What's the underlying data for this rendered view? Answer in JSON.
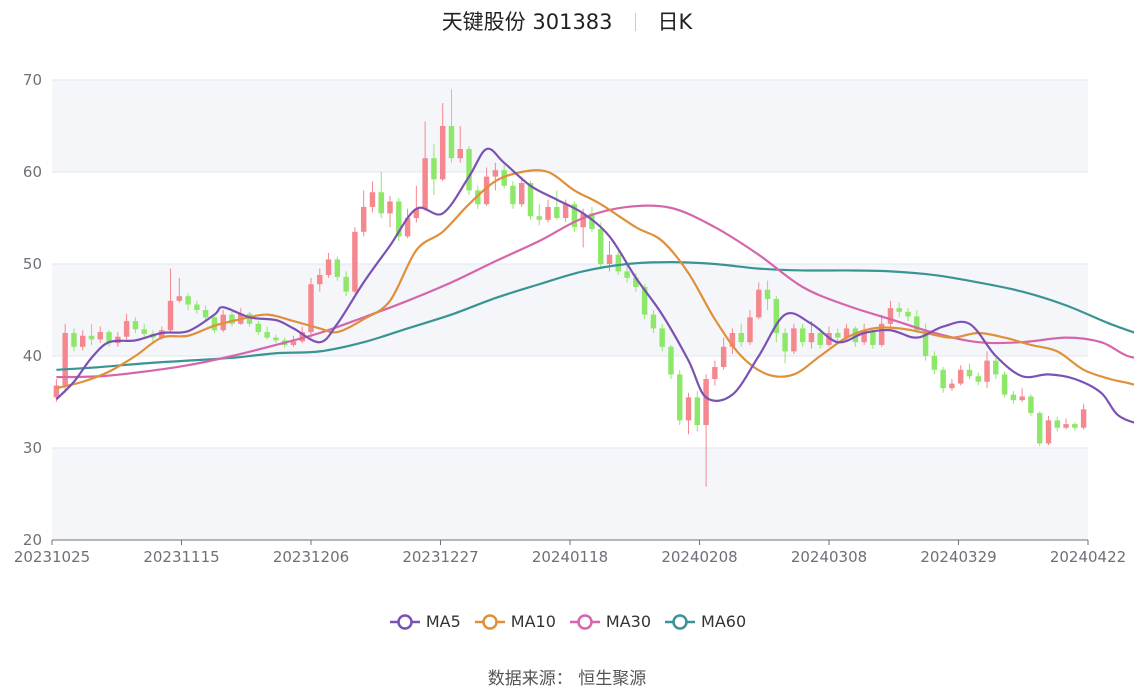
{
  "title": {
    "name": "天键股份 301383",
    "period": "日K"
  },
  "source": "数据来源： 恒生聚源",
  "colors": {
    "up": "#f4888e",
    "down": "#8de86a",
    "MA5": "#7b52b4",
    "MA10": "#e0903a",
    "MA30": "#d566ab",
    "MA60": "#3a9494",
    "grid": "#e0e6f1",
    "band": "#f5f6fa"
  },
  "chart_data": {
    "type": "candlestick",
    "ylim": [
      20,
      70
    ],
    "yticks": [
      "20",
      "30",
      "40",
      "50",
      "60",
      "70"
    ],
    "xticks": [
      "20231025",
      "20231115",
      "20231206",
      "20231227",
      "20240118",
      "20240208",
      "20240308",
      "20240329",
      "20240422"
    ],
    "legend": [
      {
        "name": "MA5",
        "color": "#7b52b4"
      },
      {
        "name": "MA10",
        "color": "#e0903a"
      },
      {
        "name": "MA30",
        "color": "#d566ab"
      },
      {
        "name": "MA60",
        "color": "#3a9494"
      }
    ],
    "candles": [
      [
        35.5,
        36.8,
        37.5,
        35.0
      ],
      [
        36.8,
        42.5,
        43.5,
        36.0
      ],
      [
        42.5,
        41.0,
        43.0,
        40.5
      ],
      [
        41.0,
        42.2,
        42.8,
        40.6
      ],
      [
        42.2,
        41.8,
        43.5,
        41.2
      ],
      [
        41.8,
        42.6,
        43.2,
        41.4
      ],
      [
        42.6,
        41.4,
        42.8,
        41.0
      ],
      [
        41.4,
        42.1,
        42.6,
        41.0
      ],
      [
        42.1,
        43.8,
        44.6,
        41.8
      ],
      [
        43.8,
        42.9,
        44.2,
        42.5
      ],
      [
        42.9,
        42.4,
        43.5,
        42.0
      ],
      [
        42.4,
        42.0,
        42.8,
        41.5
      ],
      [
        42.0,
        42.8,
        43.2,
        41.8
      ],
      [
        42.8,
        46.0,
        49.5,
        42.6
      ],
      [
        46.0,
        46.5,
        48.5,
        45.8
      ],
      [
        46.5,
        45.6,
        46.8,
        45.0
      ],
      [
        45.6,
        45.0,
        46.0,
        44.6
      ],
      [
        45.0,
        44.2,
        45.5,
        43.8
      ],
      [
        44.2,
        42.8,
        44.5,
        42.5
      ],
      [
        42.8,
        44.5,
        45.0,
        42.6
      ],
      [
        44.5,
        43.5,
        44.8,
        43.2
      ],
      [
        43.5,
        44.6,
        45.2,
        43.4
      ],
      [
        44.6,
        43.5,
        44.8,
        43.2
      ],
      [
        43.5,
        42.6,
        43.8,
        42.3
      ],
      [
        42.6,
        42.0,
        43.2,
        41.8
      ],
      [
        42.0,
        41.7,
        42.3,
        41.4
      ],
      [
        41.7,
        41.2,
        42.0,
        40.9
      ],
      [
        41.2,
        41.6,
        42.2,
        41.0
      ],
      [
        41.6,
        42.6,
        43.2,
        41.4
      ],
      [
        42.6,
        47.8,
        48.5,
        42.0
      ],
      [
        47.8,
        48.8,
        49.5,
        47.0
      ],
      [
        48.8,
        50.5,
        51.2,
        48.5
      ],
      [
        50.5,
        48.6,
        50.8,
        48.2
      ],
      [
        48.6,
        47.0,
        49.2,
        46.5
      ],
      [
        47.0,
        53.5,
        54.0,
        46.8
      ],
      [
        53.5,
        56.2,
        58.0,
        53.0
      ],
      [
        56.2,
        57.8,
        59.0,
        55.6
      ],
      [
        57.8,
        55.5,
        60.0,
        55.0
      ],
      [
        55.5,
        56.8,
        57.4,
        54.0
      ],
      [
        56.8,
        53.0,
        57.2,
        52.5
      ],
      [
        53.0,
        55.0,
        56.0,
        52.8
      ],
      [
        55.0,
        56.0,
        58.5,
        54.5
      ],
      [
        56.0,
        61.5,
        65.5,
        55.8
      ],
      [
        61.5,
        59.2,
        63.0,
        57.5
      ],
      [
        59.2,
        65.0,
        67.5,
        59.0
      ],
      [
        65.0,
        61.5,
        69.0,
        61.0
      ],
      [
        61.5,
        62.5,
        65.0,
        61.0
      ],
      [
        62.5,
        58.0,
        62.8,
        57.5
      ],
      [
        58.0,
        56.5,
        58.5,
        56.0
      ],
      [
        56.5,
        59.5,
        60.5,
        56.3
      ],
      [
        59.5,
        60.2,
        61.0,
        58.0
      ],
      [
        60.2,
        58.5,
        60.8,
        58.2
      ],
      [
        58.5,
        56.5,
        59.0,
        56.0
      ],
      [
        56.5,
        58.8,
        59.5,
        56.2
      ],
      [
        58.8,
        55.2,
        59.0,
        54.8
      ],
      [
        55.2,
        54.8,
        56.5,
        54.2
      ],
      [
        54.8,
        56.2,
        57.0,
        54.5
      ],
      [
        56.2,
        55.0,
        58.0,
        54.8
      ],
      [
        55.0,
        56.5,
        57.0,
        54.6
      ],
      [
        56.5,
        54.0,
        56.8,
        53.5
      ],
      [
        54.0,
        55.5,
        56.0,
        51.8
      ],
      [
        55.5,
        53.8,
        56.2,
        53.5
      ],
      [
        53.8,
        50.0,
        54.5,
        49.5
      ],
      [
        50.0,
        51.0,
        52.5,
        49.2
      ],
      [
        51.0,
        49.2,
        51.5,
        48.8
      ],
      [
        49.2,
        48.5,
        50.0,
        48.0
      ],
      [
        48.5,
        47.5,
        49.0,
        47.0
      ],
      [
        47.5,
        44.5,
        47.8,
        44.0
      ],
      [
        44.5,
        43.0,
        45.0,
        42.5
      ],
      [
        43.0,
        41.0,
        43.5,
        40.5
      ],
      [
        41.0,
        38.0,
        41.2,
        37.5
      ],
      [
        38.0,
        33.0,
        38.5,
        32.5
      ],
      [
        33.0,
        35.5,
        36.0,
        31.5
      ],
      [
        35.5,
        32.5,
        36.2,
        31.8
      ],
      [
        32.5,
        37.5,
        38.0,
        25.8
      ],
      [
        37.5,
        38.8,
        39.5,
        36.8
      ],
      [
        38.8,
        41.0,
        42.0,
        38.5
      ],
      [
        41.0,
        42.5,
        43.0,
        40.2
      ],
      [
        42.5,
        41.5,
        43.5,
        41.0
      ],
      [
        41.5,
        44.2,
        45.0,
        41.2
      ],
      [
        44.2,
        47.2,
        48.0,
        44.0
      ],
      [
        47.2,
        46.2,
        48.2,
        45.0
      ],
      [
        46.2,
        42.5,
        46.5,
        41.5
      ],
      [
        42.5,
        40.5,
        43.0,
        39.2
      ],
      [
        40.5,
        43.0,
        43.5,
        40.2
      ],
      [
        43.0,
        41.5,
        43.5,
        41.0
      ],
      [
        41.5,
        42.5,
        43.8,
        40.8
      ],
      [
        42.5,
        41.2,
        43.0,
        40.8
      ],
      [
        41.2,
        42.5,
        43.2,
        41.0
      ],
      [
        42.5,
        42.0,
        43.0,
        41.5
      ],
      [
        42.0,
        43.0,
        43.5,
        41.5
      ],
      [
        43.0,
        41.5,
        43.2,
        41.0
      ],
      [
        41.5,
        42.8,
        43.5,
        41.2
      ],
      [
        42.8,
        41.2,
        43.0,
        40.8
      ],
      [
        41.2,
        43.5,
        44.5,
        41.0
      ],
      [
        43.5,
        45.2,
        46.0,
        43.2
      ],
      [
        45.2,
        44.8,
        45.8,
        44.2
      ],
      [
        44.8,
        44.3,
        45.2,
        43.8
      ],
      [
        44.3,
        42.8,
        45.0,
        42.5
      ],
      [
        42.8,
        40.0,
        43.5,
        39.5
      ],
      [
        40.0,
        38.5,
        40.5,
        38.0
      ],
      [
        38.5,
        36.5,
        38.8,
        36.0
      ],
      [
        36.5,
        37.0,
        37.5,
        36.2
      ],
      [
        37.0,
        38.5,
        39.0,
        36.8
      ],
      [
        38.5,
        37.8,
        39.2,
        37.5
      ],
      [
        37.8,
        37.2,
        38.2,
        36.8
      ],
      [
        37.2,
        39.5,
        40.5,
        36.5
      ],
      [
        39.5,
        38.0,
        39.8,
        37.5
      ],
      [
        38.0,
        35.8,
        38.3,
        35.5
      ],
      [
        35.8,
        35.2,
        36.2,
        34.8
      ],
      [
        35.2,
        35.6,
        36.5,
        35.0
      ],
      [
        35.6,
        33.8,
        35.8,
        33.5
      ],
      [
        33.8,
        30.5,
        34.0,
        30.2
      ],
      [
        30.5,
        33.0,
        33.5,
        30.3
      ],
      [
        33.0,
        32.2,
        33.4,
        31.8
      ],
      [
        32.2,
        32.6,
        33.2,
        32.0
      ],
      [
        32.6,
        32.2,
        32.8,
        31.9
      ],
      [
        32.2,
        34.2,
        34.8,
        32.0
      ]
    ],
    "ma": {
      "MA5": [
        [
          0,
          35.3
        ],
        [
          2,
          37.2
        ],
        [
          4,
          39.8
        ],
        [
          6,
          41.5
        ],
        [
          9,
          41.7
        ],
        [
          12,
          42.5
        ],
        [
          15,
          42.7
        ],
        [
          18,
          44.5
        ],
        [
          19,
          45.3
        ],
        [
          22,
          44.2
        ],
        [
          25,
          43.9
        ],
        [
          27,
          43.0
        ],
        [
          30,
          41.5
        ],
        [
          32,
          43.5
        ],
        [
          35,
          48.0
        ],
        [
          38,
          52.0
        ],
        [
          41,
          56.0
        ],
        [
          44,
          55.5
        ],
        [
          47,
          59.5
        ],
        [
          49,
          62.5
        ],
        [
          51,
          61.0
        ],
        [
          54,
          58.5
        ],
        [
          57,
          57.0
        ],
        [
          60,
          55.5
        ],
        [
          63,
          53.0
        ],
        [
          66,
          48.5
        ],
        [
          69,
          44.5
        ],
        [
          72,
          39.5
        ],
        [
          74,
          35.5
        ],
        [
          77,
          35.8
        ],
        [
          80,
          40.0
        ],
        [
          83,
          44.5
        ],
        [
          86,
          43.5
        ],
        [
          89,
          41.5
        ],
        [
          92,
          42.5
        ],
        [
          95,
          42.8
        ],
        [
          98,
          42.0
        ],
        [
          101,
          43.2
        ],
        [
          104,
          43.5
        ],
        [
          107,
          40.0
        ],
        [
          110,
          37.8
        ],
        [
          113,
          38.0
        ],
        [
          116,
          37.5
        ],
        [
          119,
          36.0
        ],
        [
          121,
          33.5
        ],
        [
          124,
          32.5
        ],
        [
          127,
          32.5
        ]
      ],
      "MA10": [
        [
          0,
          36.5
        ],
        [
          3,
          37.2
        ],
        [
          6,
          38.3
        ],
        [
          9,
          40.0
        ],
        [
          12,
          42.0
        ],
        [
          15,
          42.2
        ],
        [
          18,
          43.3
        ],
        [
          21,
          44.0
        ],
        [
          24,
          44.5
        ],
        [
          27,
          43.8
        ],
        [
          30,
          43.0
        ],
        [
          32,
          42.6
        ],
        [
          35,
          44.0
        ],
        [
          38,
          46.0
        ],
        [
          41,
          51.5
        ],
        [
          44,
          53.5
        ],
        [
          47,
          56.5
        ],
        [
          50,
          59.0
        ],
        [
          53,
          60.0
        ],
        [
          56,
          60.0
        ],
        [
          59,
          58.0
        ],
        [
          62,
          56.5
        ],
        [
          66,
          54.0
        ],
        [
          69,
          52.5
        ],
        [
          72,
          49.0
        ],
        [
          75,
          44.0
        ],
        [
          78,
          40.0
        ],
        [
          81,
          38.0
        ],
        [
          84,
          38.0
        ],
        [
          87,
          40.0
        ],
        [
          90,
          42.0
        ],
        [
          93,
          43.0
        ],
        [
          96,
          43.0
        ],
        [
          99,
          42.5
        ],
        [
          102,
          42.0
        ],
        [
          105,
          42.5
        ],
        [
          108,
          42.0
        ],
        [
          111,
          41.2
        ],
        [
          114,
          40.5
        ],
        [
          117,
          38.5
        ],
        [
          120,
          37.5
        ],
        [
          123,
          36.8
        ],
        [
          125,
          35.5
        ],
        [
          127,
          34.5
        ]
      ],
      "MA30": [
        [
          0,
          37.7
        ],
        [
          5,
          37.8
        ],
        [
          10,
          38.3
        ],
        [
          15,
          39.0
        ],
        [
          20,
          40.0
        ],
        [
          25,
          41.2
        ],
        [
          30,
          42.5
        ],
        [
          35,
          44.2
        ],
        [
          40,
          46.0
        ],
        [
          45,
          48.0
        ],
        [
          50,
          50.3
        ],
        [
          55,
          52.5
        ],
        [
          60,
          55.0
        ],
        [
          65,
          56.2
        ],
        [
          70,
          56.1
        ],
        [
          75,
          54.0
        ],
        [
          80,
          51.0
        ],
        [
          85,
          47.5
        ],
        [
          90,
          45.5
        ],
        [
          95,
          44.0
        ],
        [
          100,
          42.5
        ],
        [
          105,
          41.5
        ],
        [
          110,
          41.5
        ],
        [
          115,
          42.0
        ],
        [
          119,
          41.5
        ],
        [
          122,
          40.0
        ],
        [
          125,
          39.5
        ],
        [
          127,
          38.6
        ]
      ],
      "MA60": [
        [
          0,
          38.5
        ],
        [
          5,
          38.8
        ],
        [
          10,
          39.2
        ],
        [
          15,
          39.5
        ],
        [
          20,
          39.8
        ],
        [
          25,
          40.3
        ],
        [
          30,
          40.5
        ],
        [
          35,
          41.5
        ],
        [
          40,
          43.0
        ],
        [
          45,
          44.5
        ],
        [
          50,
          46.3
        ],
        [
          55,
          47.8
        ],
        [
          60,
          49.2
        ],
        [
          65,
          50.0
        ],
        [
          70,
          50.2
        ],
        [
          75,
          50.0
        ],
        [
          80,
          49.5
        ],
        [
          85,
          49.3
        ],
        [
          90,
          49.3
        ],
        [
          95,
          49.2
        ],
        [
          100,
          48.8
        ],
        [
          105,
          48.0
        ],
        [
          110,
          47.0
        ],
        [
          115,
          45.5
        ],
        [
          120,
          43.5
        ],
        [
          125,
          41.8
        ],
        [
          127,
          41.0
        ]
      ]
    }
  }
}
